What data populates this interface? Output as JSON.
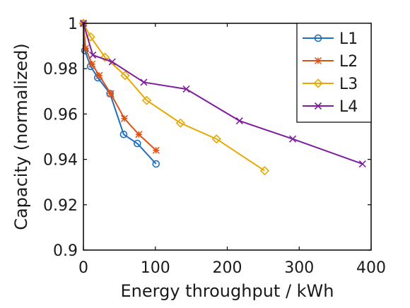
{
  "chart_data": {
    "type": "line",
    "title": "",
    "xlabel": "Energy throughput / kWh",
    "ylabel": "Capacity (normalized)",
    "xlim": [
      0,
      400
    ],
    "ylim": [
      0.9,
      1.0
    ],
    "xticks": [
      0,
      100,
      200,
      300,
      400
    ],
    "xtick_labels": [
      "0",
      "100",
      "200",
      "300",
      "400"
    ],
    "yticks": [
      0.9,
      0.92,
      0.94,
      0.96,
      0.98,
      1.0
    ],
    "ytick_labels": [
      "0.9",
      "0.92",
      "0.94",
      "0.96",
      "0.98",
      "1"
    ],
    "grid": false,
    "legend_position": "top-right",
    "series": [
      {
        "name": "L1",
        "color": "#1f6fbf",
        "marker": "circle",
        "x": [
          0,
          2,
          10,
          20,
          37,
          56,
          75,
          101
        ],
        "y": [
          1.0,
          0.988,
          0.981,
          0.976,
          0.969,
          0.951,
          0.947,
          0.938
        ]
      },
      {
        "name": "L2",
        "color": "#d95319",
        "marker": "asterisk",
        "x": [
          0,
          3,
          12,
          22,
          38,
          57,
          77,
          101
        ],
        "y": [
          1.0,
          0.989,
          0.982,
          0.977,
          0.969,
          0.958,
          0.951,
          0.944
        ]
      },
      {
        "name": "L3",
        "color": "#e8a800",
        "marker": "diamond",
        "x": [
          0,
          10,
          30,
          58,
          88,
          135,
          185,
          252
        ],
        "y": [
          1.0,
          0.994,
          0.985,
          0.977,
          0.966,
          0.956,
          0.949,
          0.935
        ]
      },
      {
        "name": "L4",
        "color": "#7e1e9c",
        "marker": "x",
        "x": [
          0,
          13,
          40,
          84,
          143,
          217,
          291,
          388
        ],
        "y": [
          1.0,
          0.986,
          0.983,
          0.974,
          0.971,
          0.957,
          0.949,
          0.938
        ]
      }
    ]
  }
}
